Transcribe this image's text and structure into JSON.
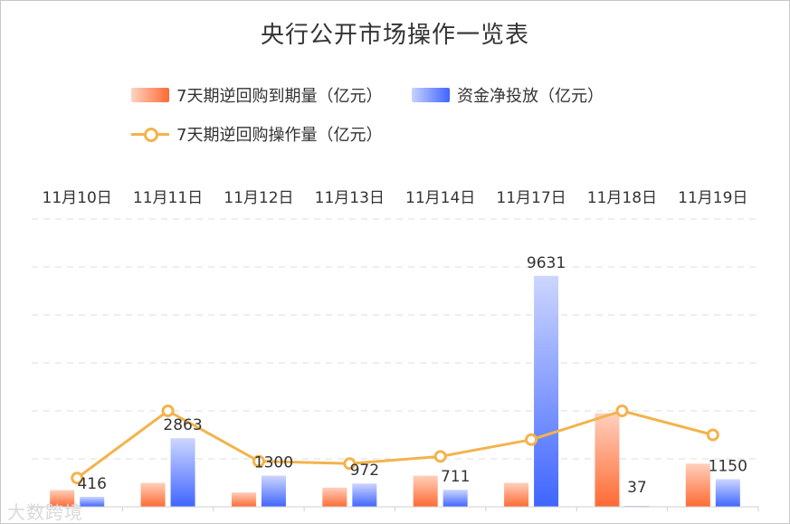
{
  "chart_data": {
    "type": "bar",
    "title": "央行公开市场操作一览表",
    "categories": [
      "11月10日",
      "11月11日",
      "11月12日",
      "11月13日",
      "11月14日",
      "11月17日",
      "11月18日",
      "11月19日"
    ],
    "series": [
      {
        "name": "7天期逆回购到期量（亿元）",
        "type": "bar",
        "color": "#ff6a33",
        "values": [
          700,
          1000,
          600,
          800,
          1300,
          1000,
          3900,
          1800
        ]
      },
      {
        "name": "资金净投放（亿元）",
        "type": "bar",
        "color": "#3f65ff",
        "values": [
          416,
          2863,
          1300,
          972,
          711,
          9631,
          37,
          1150
        ],
        "labels": [
          "416",
          "2863",
          "1300",
          "972",
          "711",
          "9631",
          "37",
          "1150"
        ]
      },
      {
        "name": "7天期逆回购操作量（亿元）",
        "type": "line",
        "color": "#f3b34c",
        "values": [
          1200,
          4000,
          1900,
          1800,
          2100,
          2800,
          4000,
          3000
        ]
      }
    ],
    "ylim": [
      0,
      12000
    ],
    "grid": true,
    "legend": "top-left"
  }
}
